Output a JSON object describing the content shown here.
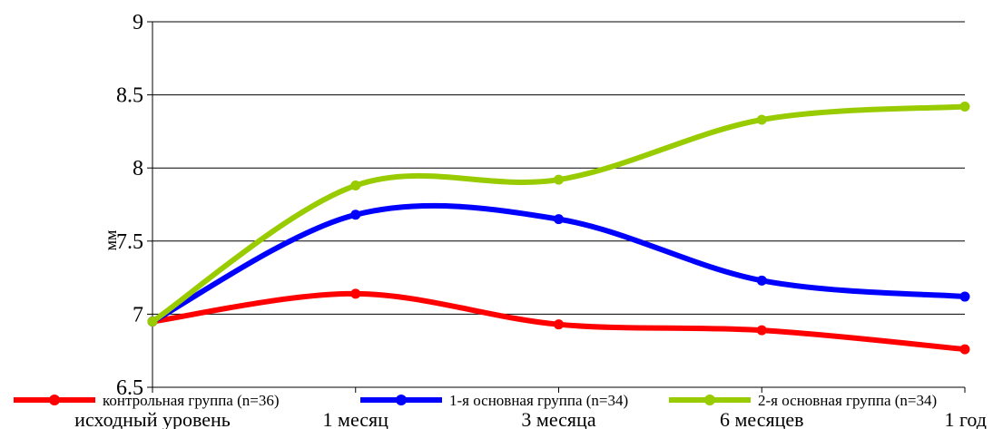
{
  "chart_data": {
    "type": "line",
    "ylabel": "мм",
    "ylim": [
      6.5,
      9
    ],
    "yticks": [
      "6.5",
      "7",
      "7.5",
      "8",
      "8.5",
      "9"
    ],
    "categories": [
      "исходный уровень",
      "1 месяц",
      "3 месяца",
      "6 месяцев",
      "1 год"
    ],
    "grid": "horizontal",
    "legend_position": "bottom",
    "series": [
      {
        "name": "контрольная группа (n=36)",
        "color": "#ff0000",
        "values": [
          6.95,
          7.14,
          6.93,
          6.89,
          6.76
        ]
      },
      {
        "name": "1-я основная группа (n=34)",
        "color": "#0000ff",
        "values": [
          6.95,
          7.68,
          7.65,
          7.23,
          7.12
        ]
      },
      {
        "name": "2-я основная группа (n=34)",
        "color": "#99cc00",
        "values": [
          6.95,
          7.88,
          7.92,
          8.33,
          8.42
        ]
      }
    ]
  }
}
